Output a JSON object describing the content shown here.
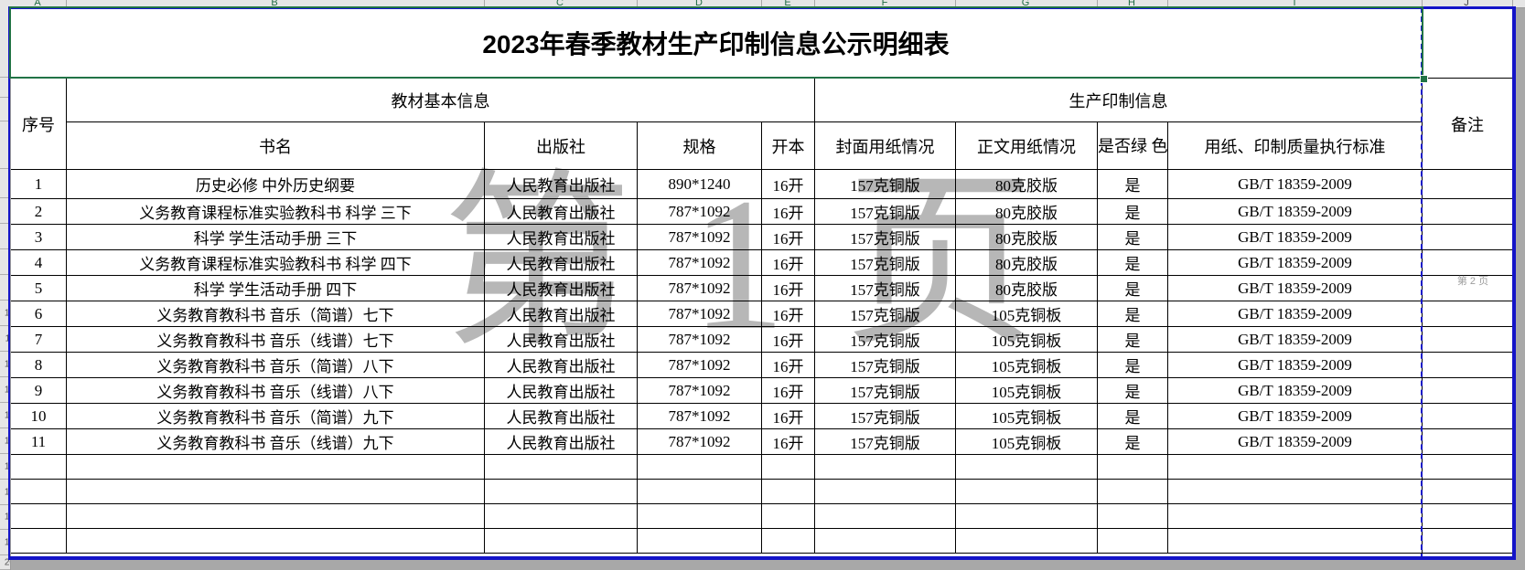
{
  "app": {
    "column_letters": [
      "A",
      "B",
      "C",
      "D",
      "E",
      "F",
      "G",
      "H",
      "I",
      "J"
    ],
    "row_count_visible": 20,
    "page1_watermark": "第 1 页",
    "page2_watermark": "第 2 页"
  },
  "title": "2023年春季教材生产印制信息公示明细表",
  "colors": {
    "selection_green": "#217346",
    "page_break_blue": "#1414c8",
    "watermark_gray": "#777777",
    "sheet_white": "#ffffff",
    "canvas_gray": "#a8a8a8"
  },
  "table": {
    "header": {
      "serial": "序号",
      "basic_group": "教材基本信息",
      "print_group": "生产印制信息",
      "book_title": "书名",
      "publisher": "出版社",
      "spec": "规格",
      "format": "开本",
      "cover_paper": "封面用纸情况",
      "body_paper": "正文用纸情况",
      "green_print": "是否绿\n色印刷",
      "standard": "用纸、印制质量执行标准",
      "remark": "备注"
    },
    "rows": [
      {
        "serial": "1",
        "book_title": "历史必修 中外历史纲要",
        "publisher": "人民教育出版社",
        "spec": "890*1240",
        "format": "16开",
        "cover_paper": "157克铜版",
        "body_paper": "80克胶版",
        "green_print": "是",
        "standard": "GB/T 18359-2009",
        "remark": ""
      },
      {
        "serial": "2",
        "book_title": "义务教育课程标准实验教科书 科学 三下",
        "publisher": "人民教育出版社",
        "spec": "787*1092",
        "format": "16开",
        "cover_paper": "157克铜版",
        "body_paper": "80克胶版",
        "green_print": "是",
        "standard": "GB/T 18359-2009",
        "remark": ""
      },
      {
        "serial": "3",
        "book_title": "科学 学生活动手册 三下",
        "publisher": "人民教育出版社",
        "spec": "787*1092",
        "format": "16开",
        "cover_paper": "157克铜版",
        "body_paper": "80克胶版",
        "green_print": "是",
        "standard": "GB/T 18359-2009",
        "remark": ""
      },
      {
        "serial": "4",
        "book_title": "义务教育课程标准实验教科书 科学 四下",
        "publisher": "人民教育出版社",
        "spec": "787*1092",
        "format": "16开",
        "cover_paper": "157克铜版",
        "body_paper": "80克胶版",
        "green_print": "是",
        "standard": "GB/T 18359-2009",
        "remark": ""
      },
      {
        "serial": "5",
        "book_title": "科学 学生活动手册 四下",
        "publisher": "人民教育出版社",
        "spec": "787*1092",
        "format": "16开",
        "cover_paper": "157克铜版",
        "body_paper": "80克胶版",
        "green_print": "是",
        "standard": "GB/T 18359-2009",
        "remark": ""
      },
      {
        "serial": "6",
        "book_title": "义务教育教科书 音乐（简谱）七下",
        "publisher": "人民教育出版社",
        "spec": "787*1092",
        "format": "16开",
        "cover_paper": "157克铜版",
        "body_paper": "105克铜板",
        "green_print": "是",
        "standard": "GB/T 18359-2009",
        "remark": ""
      },
      {
        "serial": "7",
        "book_title": "义务教育教科书 音乐（线谱）七下",
        "publisher": "人民教育出版社",
        "spec": "787*1092",
        "format": "16开",
        "cover_paper": "157克铜版",
        "body_paper": "105克铜板",
        "green_print": "是",
        "standard": "GB/T 18359-2009",
        "remark": ""
      },
      {
        "serial": "8",
        "book_title": "义务教育教科书 音乐（简谱）八下",
        "publisher": "人民教育出版社",
        "spec": "787*1092",
        "format": "16开",
        "cover_paper": "157克铜版",
        "body_paper": "105克铜板",
        "green_print": "是",
        "standard": "GB/T 18359-2009",
        "remark": ""
      },
      {
        "serial": "9",
        "book_title": "义务教育教科书 音乐（线谱）八下",
        "publisher": "人民教育出版社",
        "spec": "787*1092",
        "format": "16开",
        "cover_paper": "157克铜版",
        "body_paper": "105克铜板",
        "green_print": "是",
        "standard": "GB/T 18359-2009",
        "remark": ""
      },
      {
        "serial": "10",
        "book_title": "义务教育教科书 音乐（简谱）九下",
        "publisher": "人民教育出版社",
        "spec": "787*1092",
        "format": "16开",
        "cover_paper": "157克铜版",
        "body_paper": "105克铜板",
        "green_print": "是",
        "standard": "GB/T 18359-2009",
        "remark": ""
      },
      {
        "serial": "11",
        "book_title": "义务教育教科书 音乐（线谱）九下",
        "publisher": "人民教育出版社",
        "spec": "787*1092",
        "format": "16开",
        "cover_paper": "157克铜版",
        "body_paper": "105克铜板",
        "green_print": "是",
        "standard": "GB/T 18359-2009",
        "remark": ""
      }
    ],
    "empty_row_count": 4
  }
}
